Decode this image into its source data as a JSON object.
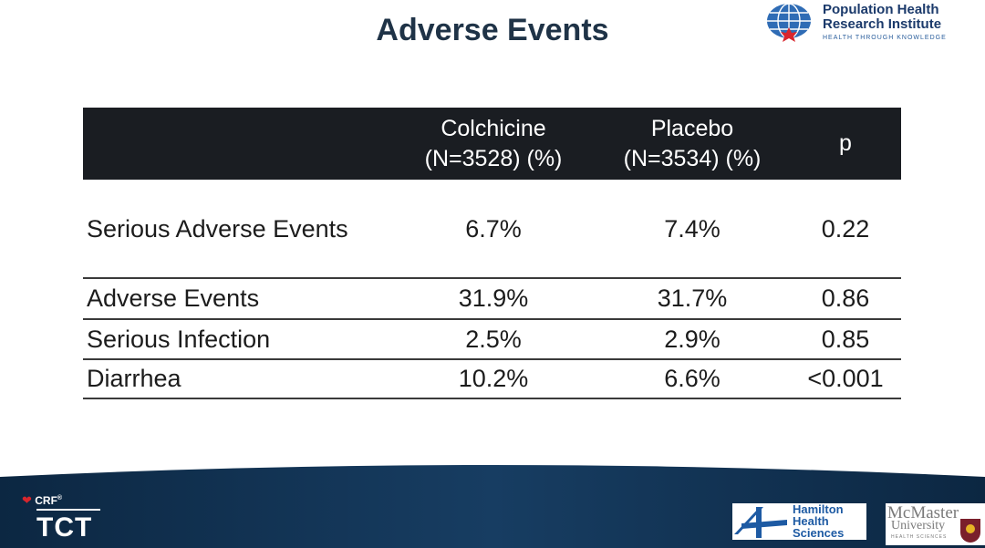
{
  "slide": {
    "title": "Adverse Events"
  },
  "header_logo": {
    "line1": "Population Health",
    "line2": "Research Institute",
    "tagline": "HEALTH THROUGH KNOWLEDGE"
  },
  "table": {
    "columns": [
      {
        "line1": "Colchicine",
        "line2": "(N=3528) (%)"
      },
      {
        "line1": "Placebo",
        "line2": "(N=3534) (%)"
      },
      {
        "line1": "p",
        "line2": ""
      }
    ],
    "rows": [
      {
        "label": "Serious Adverse Events",
        "colchicine": "6.7%",
        "placebo": "7.4%",
        "p": "0.22"
      },
      {
        "label": "Adverse Events",
        "colchicine": "31.9%",
        "placebo": "31.7%",
        "p": "0.86"
      },
      {
        "label": "Serious Infection",
        "colchicine": "2.5%",
        "placebo": "2.9%",
        "p": "0.85"
      },
      {
        "label": "Diarrhea",
        "colchicine": "10.2%",
        "placebo": "6.6%",
        "p": "<0.001"
      }
    ]
  },
  "footer": {
    "crf": "CRF",
    "tct": "TCT",
    "hhs": [
      "Hamilton",
      "Health",
      "Sciences"
    ],
    "mcmaster": {
      "name": "McMaster",
      "univ": "University",
      "hs": "HEALTH SCIENCES"
    }
  },
  "colors": {
    "title": "#1f3347",
    "header_bg": "#1a1d22",
    "band": "#0f2a46"
  }
}
